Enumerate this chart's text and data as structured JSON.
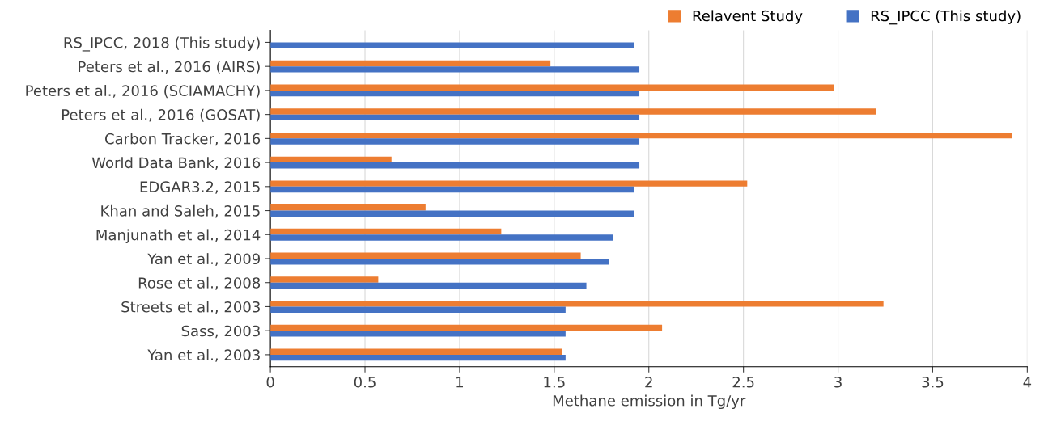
{
  "chart_data": {
    "type": "bar",
    "orientation": "horizontal",
    "xlabel": "Methane emission in Tg/yr",
    "categories": [
      "RS_IPCC, 2018 (This study)",
      "Peters et al., 2016 (AIRS)",
      "Peters et al., 2016 (SCIAMACHY)",
      "Peters et al., 2016 (GOSAT)",
      "Carbon Tracker, 2016",
      "World Data Bank, 2016",
      "EDGAR3.2, 2015",
      "Khan and Saleh, 2015",
      "Manjunath et al., 2014",
      "Yan et al., 2009",
      "Rose et al., 2008",
      "Streets et al., 2003",
      "Sass, 2003",
      "Yan et al., 2003"
    ],
    "series": [
      {
        "name": "Relavent Study",
        "color": "#ed7d31",
        "values": [
          null,
          1.48,
          2.98,
          3.2,
          3.92,
          0.64,
          2.52,
          0.82,
          1.22,
          1.64,
          0.57,
          3.24,
          2.07,
          1.54
        ]
      },
      {
        "name": "RS_IPCC (This study)",
        "color": "#4472c4",
        "values": [
          1.92,
          1.95,
          1.95,
          1.95,
          1.95,
          1.95,
          1.92,
          1.92,
          1.81,
          1.79,
          1.67,
          1.56,
          1.56,
          1.56
        ]
      }
    ],
    "xlim": [
      0,
      4
    ],
    "xticks": [
      0,
      0.5,
      1,
      1.5,
      2,
      2.5,
      3,
      3.5,
      4
    ],
    "grid": "x",
    "legend": "top right"
  }
}
